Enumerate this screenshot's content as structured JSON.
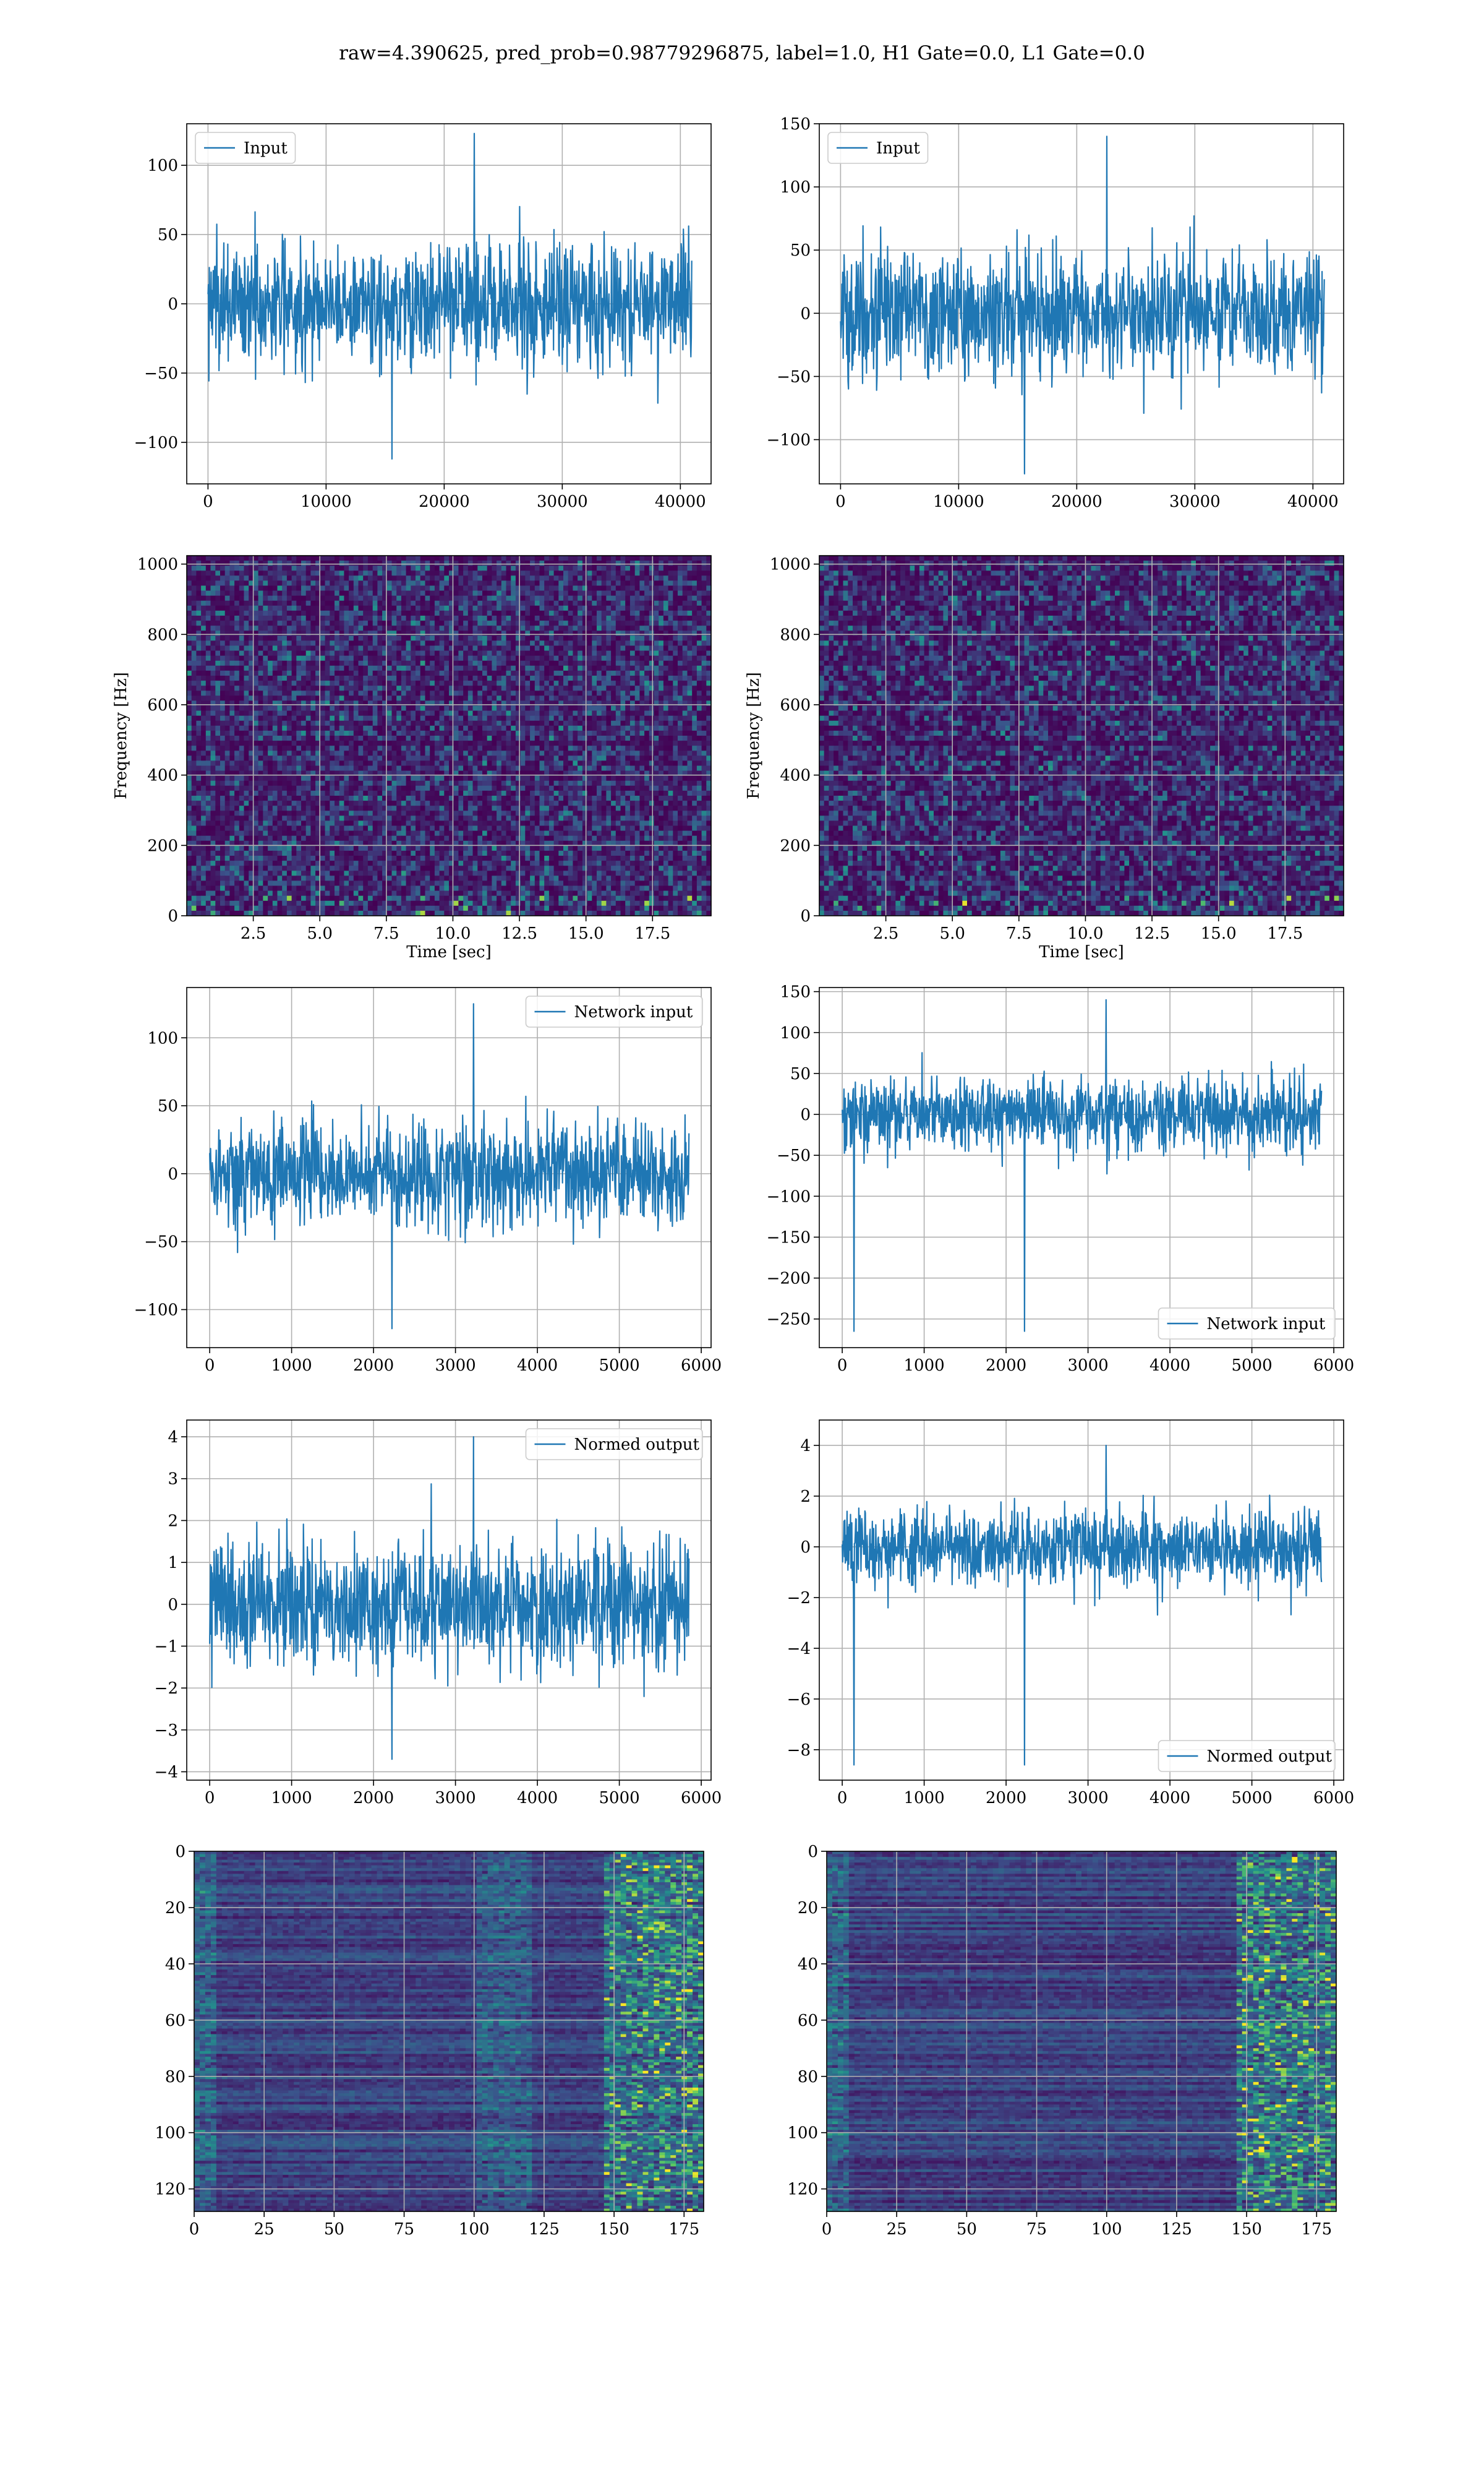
{
  "figure": {
    "title": "raw=4.390625, pred_prob=0.98779296875, label=1.0, H1 Gate=0.0, L1 Gate=0.0",
    "colors": {
      "line": "#1f77b4",
      "grid": "#b0b0b0"
    }
  },
  "chart_data": [
    {
      "id": "h1_input",
      "type": "line",
      "xlim": [
        -1800,
        42600
      ],
      "ylim": [
        -130,
        130
      ],
      "xticks": [
        0,
        10000,
        20000,
        30000,
        40000
      ],
      "yticks": [
        -100,
        -50,
        0,
        50,
        100
      ],
      "xlabel": "",
      "ylabel": "",
      "legend": {
        "label": "Input",
        "loc": "upper left"
      },
      "grid": true,
      "series": [
        {
          "name": "Input",
          "x_range": [
            0,
            40960
          ],
          "n_points": 1100,
          "noise_sigma": 22,
          "envelope": [
            -112,
            123
          ]
        }
      ]
    },
    {
      "id": "l1_input",
      "type": "line",
      "xlim": [
        -1800,
        42600
      ],
      "ylim": [
        -135,
        150
      ],
      "xticks": [
        0,
        10000,
        20000,
        30000,
        40000
      ],
      "yticks": [
        -100,
        -50,
        0,
        50,
        100,
        150
      ],
      "xlabel": "",
      "ylabel": "",
      "legend": {
        "label": "Input",
        "loc": "upper left"
      },
      "grid": true,
      "series": [
        {
          "name": "Input",
          "x_range": [
            0,
            40960
          ],
          "n_points": 1100,
          "noise_sigma": 24,
          "envelope": [
            -127,
            140
          ]
        }
      ]
    },
    {
      "id": "h1_spectrogram",
      "type": "heatmap",
      "xlim": [
        0,
        19.7
      ],
      "ylim": [
        0,
        1024
      ],
      "xticks": [
        2.5,
        5.0,
        7.5,
        10.0,
        12.5,
        15.0,
        17.5
      ],
      "yticks": [
        0,
        200,
        400,
        600,
        800,
        1000
      ],
      "xtick_labels": [
        "2.5",
        "5.0",
        "7.5",
        "10.0",
        "12.5",
        "15.0",
        "17.5"
      ],
      "xlabel": "Time [sec]",
      "ylabel": "Frequency [Hz]",
      "colormap": "viridis",
      "grid": true
    },
    {
      "id": "l1_spectrogram",
      "type": "heatmap",
      "xlim": [
        0,
        19.7
      ],
      "ylim": [
        0,
        1024
      ],
      "xticks": [
        2.5,
        5.0,
        7.5,
        10.0,
        12.5,
        15.0,
        17.5
      ],
      "yticks": [
        0,
        200,
        400,
        600,
        800,
        1000
      ],
      "xtick_labels": [
        "2.5",
        "5.0",
        "7.5",
        "10.0",
        "12.5",
        "15.0",
        "17.5"
      ],
      "xlabel": "Time [sec]",
      "ylabel": "Frequency [Hz]",
      "colormap": "viridis",
      "grid": true
    },
    {
      "id": "h1_network_input",
      "type": "line",
      "xlim": [
        -280,
        6120
      ],
      "ylim": [
        -128,
        137
      ],
      "xticks": [
        0,
        1000,
        2000,
        3000,
        4000,
        5000,
        6000
      ],
      "yticks": [
        -100,
        -50,
        0,
        50,
        100
      ],
      "xlabel": "",
      "ylabel": "",
      "legend": {
        "label": "Network input",
        "loc": "upper right"
      },
      "grid": true,
      "series": [
        {
          "name": "Network input",
          "x_range": [
            0,
            5850
          ],
          "n_points": 1100,
          "noise_sigma": 20,
          "envelope": [
            -114,
            125
          ]
        }
      ]
    },
    {
      "id": "l1_network_input",
      "type": "line",
      "xlim": [
        -280,
        6120
      ],
      "ylim": [
        -285,
        155
      ],
      "xticks": [
        0,
        1000,
        2000,
        3000,
        4000,
        5000,
        6000
      ],
      "yticks": [
        -250,
        -200,
        -150,
        -100,
        -50,
        0,
        50,
        100,
        150
      ],
      "xlabel": "",
      "ylabel": "",
      "legend": {
        "label": "Network input",
        "loc": "lower right"
      },
      "grid": true,
      "series": [
        {
          "name": "Network input",
          "x_range": [
            0,
            5850
          ],
          "n_points": 1100,
          "noise_sigma": 22,
          "envelope": [
            -265,
            140
          ]
        }
      ]
    },
    {
      "id": "h1_normed_output",
      "type": "line",
      "xlim": [
        -280,
        6120
      ],
      "ylim": [
        -4.2,
        4.4
      ],
      "xticks": [
        0,
        1000,
        2000,
        3000,
        4000,
        5000,
        6000
      ],
      "yticks": [
        -4,
        -3,
        -2,
        -1,
        0,
        1,
        2,
        3,
        4
      ],
      "xlabel": "",
      "ylabel": "",
      "legend": {
        "label": "Normed output",
        "loc": "upper right"
      },
      "grid": true,
      "series": [
        {
          "name": "Normed output",
          "x_range": [
            0,
            5850
          ],
          "n_points": 1100,
          "noise_sigma": 0.75,
          "envelope": [
            -3.7,
            4.0
          ]
        }
      ]
    },
    {
      "id": "l1_normed_output",
      "type": "line",
      "xlim": [
        -280,
        6120
      ],
      "ylim": [
        -9.2,
        5.0
      ],
      "xticks": [
        0,
        1000,
        2000,
        3000,
        4000,
        5000,
        6000
      ],
      "yticks": [
        -8,
        -6,
        -4,
        -2,
        0,
        2,
        4
      ],
      "xlabel": "",
      "ylabel": "",
      "legend": {
        "label": "Normed output",
        "loc": "lower right"
      },
      "grid": true,
      "series": [
        {
          "name": "Normed output",
          "x_range": [
            0,
            5850
          ],
          "n_points": 1100,
          "noise_sigma": 0.75,
          "envelope": [
            -8.6,
            4.0
          ]
        }
      ]
    },
    {
      "id": "h1_activation_map",
      "type": "heatmap",
      "xlim": [
        0,
        182
      ],
      "ylim": [
        128,
        0
      ],
      "xticks": [
        0,
        25,
        50,
        75,
        100,
        125,
        150,
        175
      ],
      "yticks": [
        0,
        20,
        40,
        60,
        80,
        100,
        120
      ],
      "xlabel": "",
      "ylabel": "",
      "colormap": "viridis",
      "grid": true
    },
    {
      "id": "l1_activation_map",
      "type": "heatmap",
      "xlim": [
        0,
        182
      ],
      "ylim": [
        128,
        0
      ],
      "xticks": [
        0,
        25,
        50,
        75,
        100,
        125,
        150,
        175
      ],
      "yticks": [
        0,
        20,
        40,
        60,
        80,
        100,
        120
      ],
      "xlabel": "",
      "ylabel": "",
      "colormap": "viridis",
      "grid": true
    }
  ]
}
